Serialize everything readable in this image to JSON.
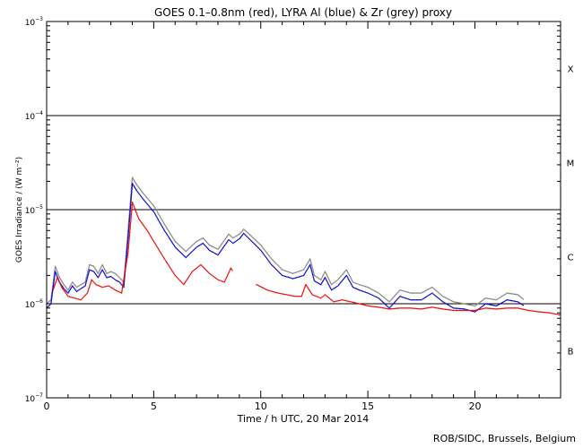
{
  "chart_data": {
    "type": "line",
    "title": "GOES 0.1–0.8nm (red), LYRA Al (blue) & Zr (grey) proxy",
    "xlabel": "Time / h UTC, 20 Mar 2014",
    "ylabel": "GOES Irradiance / (W m⁻²)",
    "xlim": [
      0,
      24
    ],
    "ylim": [
      1e-07,
      0.001
    ],
    "yscale": "log",
    "x_ticks": [
      0,
      5,
      10,
      15,
      20
    ],
    "x_tick_labels": [
      "0",
      "5",
      "10",
      "15",
      "20"
    ],
    "y_ticks": [
      1e-07,
      1e-06,
      1e-05,
      0.0001,
      0.001
    ],
    "y_tick_labels": [
      {
        "base": "10",
        "exp": "−7"
      },
      {
        "base": "10",
        "exp": "−6"
      },
      {
        "base": "10",
        "exp": "−5"
      },
      {
        "base": "10",
        "exp": "−4"
      },
      {
        "base": "10",
        "exp": "−3"
      }
    ],
    "flare_class_lines": [
      1e-06,
      1e-05,
      0.0001
    ],
    "flare_classes": [
      {
        "label": "B",
        "y": 3.16e-07
      },
      {
        "label": "C",
        "y": 3.16e-06
      },
      {
        "label": "M",
        "y": 3.16e-05
      },
      {
        "label": "X",
        "y": 0.000316
      }
    ],
    "series": [
      {
        "name": "Zr (grey) proxy",
        "color": "#808080",
        "points": [
          [
            0,
            1e-06
          ],
          [
            0.2,
            1.1e-06
          ],
          [
            0.4,
            2.5e-06
          ],
          [
            0.6,
            1.9e-06
          ],
          [
            0.8,
            1.6e-06
          ],
          [
            1.0,
            1.4e-06
          ],
          [
            1.2,
            1.7e-06
          ],
          [
            1.4,
            1.5e-06
          ],
          [
            1.6,
            1.6e-06
          ],
          [
            1.8,
            1.7e-06
          ],
          [
            2.0,
            2.6e-06
          ],
          [
            2.2,
            2.5e-06
          ],
          [
            2.4,
            2.1e-06
          ],
          [
            2.6,
            2.6e-06
          ],
          [
            2.8,
            2.1e-06
          ],
          [
            3.0,
            2.2e-06
          ],
          [
            3.2,
            2.1e-06
          ],
          [
            3.4,
            1.9e-06
          ],
          [
            3.6,
            1.7e-06
          ],
          [
            3.8,
            6e-06
          ],
          [
            4.0,
            2.2e-05
          ],
          [
            4.2,
            1.85e-05
          ],
          [
            4.5,
            1.5e-05
          ],
          [
            5.0,
            1.1e-05
          ],
          [
            5.5,
            7e-06
          ],
          [
            6.0,
            4.6e-06
          ],
          [
            6.5,
            3.6e-06
          ],
          [
            7.0,
            4.6e-06
          ],
          [
            7.3,
            5e-06
          ],
          [
            7.6,
            4.2e-06
          ],
          [
            8.0,
            3.8e-06
          ],
          [
            8.5,
            5.5e-06
          ],
          [
            8.7,
            5e-06
          ],
          [
            9.0,
            5.5e-06
          ],
          [
            9.2,
            6.2e-06
          ],
          [
            9.5,
            5.4e-06
          ],
          [
            10.0,
            4.2e-06
          ],
          [
            10.5,
            3e-06
          ],
          [
            11.0,
            2.3e-06
          ],
          [
            11.5,
            2.1e-06
          ],
          [
            12.0,
            2.3e-06
          ],
          [
            12.3,
            3e-06
          ],
          [
            12.5,
            2e-06
          ],
          [
            12.8,
            1.8e-06
          ],
          [
            13.0,
            2.2e-06
          ],
          [
            13.3,
            1.6e-06
          ],
          [
            13.6,
            1.8e-06
          ],
          [
            14.0,
            2.3e-06
          ],
          [
            14.3,
            1.7e-06
          ],
          [
            14.6,
            1.6e-06
          ],
          [
            15.0,
            1.5e-06
          ],
          [
            15.5,
            1.3e-06
          ],
          [
            16.0,
            1.05e-06
          ],
          [
            16.5,
            1.4e-06
          ],
          [
            17.0,
            1.3e-06
          ],
          [
            17.5,
            1.3e-06
          ],
          [
            18.0,
            1.5e-06
          ],
          [
            18.5,
            1.2e-06
          ],
          [
            19.0,
            1.05e-06
          ],
          [
            19.5,
            1e-06
          ],
          [
            20.0,
            9.5e-07
          ],
          [
            20.5,
            1.15e-06
          ],
          [
            21.0,
            1.1e-06
          ],
          [
            21.5,
            1.3e-06
          ],
          [
            22.0,
            1.25e-06
          ],
          [
            22.3,
            1.1e-06
          ]
        ]
      },
      {
        "name": "LYRA Al (blue)",
        "color": "#0000cc",
        "points": [
          [
            0,
            9e-07
          ],
          [
            0.2,
            1e-06
          ],
          [
            0.4,
            2.2e-06
          ],
          [
            0.6,
            1.7e-06
          ],
          [
            0.8,
            1.45e-06
          ],
          [
            1.0,
            1.3e-06
          ],
          [
            1.2,
            1.55e-06
          ],
          [
            1.4,
            1.35e-06
          ],
          [
            1.6,
            1.45e-06
          ],
          [
            1.8,
            1.55e-06
          ],
          [
            2.0,
            2.3e-06
          ],
          [
            2.2,
            2.2e-06
          ],
          [
            2.4,
            1.9e-06
          ],
          [
            2.6,
            2.3e-06
          ],
          [
            2.8,
            1.9e-06
          ],
          [
            3.0,
            1.95e-06
          ],
          [
            3.2,
            1.8e-06
          ],
          [
            3.4,
            1.7e-06
          ],
          [
            3.6,
            1.5e-06
          ],
          [
            3.8,
            5e-06
          ],
          [
            4.0,
            1.9e-05
          ],
          [
            4.2,
            1.6e-05
          ],
          [
            4.5,
            1.3e-05
          ],
          [
            5.0,
            9.5e-06
          ],
          [
            5.5,
            6e-06
          ],
          [
            6.0,
            4e-06
          ],
          [
            6.5,
            3.1e-06
          ],
          [
            7.0,
            4e-06
          ],
          [
            7.3,
            4.4e-06
          ],
          [
            7.6,
            3.7e-06
          ],
          [
            8.0,
            3.3e-06
          ],
          [
            8.5,
            4.8e-06
          ],
          [
            8.7,
            4.4e-06
          ],
          [
            9.0,
            4.9e-06
          ],
          [
            9.2,
            5.6e-06
          ],
          [
            9.5,
            4.8e-06
          ],
          [
            10.0,
            3.7e-06
          ],
          [
            10.5,
            2.6e-06
          ],
          [
            11.0,
            2e-06
          ],
          [
            11.5,
            1.85e-06
          ],
          [
            12.0,
            2e-06
          ],
          [
            12.3,
            2.6e-06
          ],
          [
            12.5,
            1.75e-06
          ],
          [
            12.8,
            1.6e-06
          ],
          [
            13.0,
            1.9e-06
          ],
          [
            13.3,
            1.4e-06
          ],
          [
            13.6,
            1.55e-06
          ],
          [
            14.0,
            2e-06
          ],
          [
            14.3,
            1.5e-06
          ],
          [
            14.6,
            1.4e-06
          ],
          [
            15.0,
            1.3e-06
          ],
          [
            15.5,
            1.15e-06
          ],
          [
            16.0,
            9e-07
          ],
          [
            16.5,
            1.2e-06
          ],
          [
            17.0,
            1.1e-06
          ],
          [
            17.5,
            1.1e-06
          ],
          [
            18.0,
            1.3e-06
          ],
          [
            18.5,
            1.05e-06
          ],
          [
            19.0,
            9e-07
          ],
          [
            19.5,
            8.8e-07
          ],
          [
            20.0,
            8.2e-07
          ],
          [
            20.5,
            1e-06
          ],
          [
            21.0,
            9.5e-07
          ],
          [
            21.5,
            1.1e-06
          ],
          [
            22.0,
            1.05e-06
          ],
          [
            22.3,
            9.5e-07
          ]
        ]
      },
      {
        "name": "GOES 0.1–0.8nm (red)",
        "color": "#ee0000",
        "points": [
          [
            0.3,
            1.4e-06
          ],
          [
            0.5,
            1.9e-06
          ],
          [
            0.7,
            1.5e-06
          ],
          [
            1.0,
            1.2e-06
          ],
          [
            1.3,
            1.15e-06
          ],
          [
            1.6,
            1.1e-06
          ],
          [
            1.9,
            1.3e-06
          ],
          [
            2.1,
            1.8e-06
          ],
          [
            2.3,
            1.6e-06
          ],
          [
            2.6,
            1.5e-06
          ],
          [
            2.9,
            1.55e-06
          ],
          [
            3.2,
            1.4e-06
          ],
          [
            3.5,
            1.3e-06
          ],
          [
            3.8,
            3.5e-06
          ],
          [
            4.0,
            1.2e-05
          ],
          [
            4.3,
            8e-06
          ],
          [
            4.7,
            6e-06
          ],
          [
            5.0,
            4.6e-06
          ],
          [
            5.5,
            3e-06
          ],
          [
            6.0,
            2e-06
          ],
          [
            6.4,
            1.6e-06
          ],
          [
            6.8,
            2.2e-06
          ],
          [
            7.2,
            2.6e-06
          ],
          [
            7.6,
            2.1e-06
          ],
          [
            8.0,
            1.8e-06
          ],
          [
            8.3,
            1.7e-06
          ],
          [
            8.6,
            2.4e-06
          ],
          [
            8.7,
            2.2e-06
          ],
          [
            null,
            null
          ],
          [
            9.8,
            1.6e-06
          ],
          [
            10.3,
            1.4e-06
          ],
          [
            10.8,
            1.3e-06
          ],
          [
            11.2,
            1.25e-06
          ],
          [
            11.6,
            1.2e-06
          ],
          [
            11.9,
            1.2e-06
          ],
          [
            12.1,
            1.6e-06
          ],
          [
            12.4,
            1.25e-06
          ],
          [
            12.8,
            1.15e-06
          ],
          [
            13.0,
            1.25e-06
          ],
          [
            13.4,
            1.05e-06
          ],
          [
            13.8,
            1.1e-06
          ],
          [
            14.2,
            1.05e-06
          ],
          [
            14.6,
            1e-06
          ],
          [
            15.0,
            9.5e-07
          ],
          [
            15.5,
            9.2e-07
          ],
          [
            16.0,
            8.8e-07
          ],
          [
            16.5,
            9e-07
          ],
          [
            17.0,
            9e-07
          ],
          [
            17.5,
            8.8e-07
          ],
          [
            18.0,
            9.2e-07
          ],
          [
            18.5,
            8.8e-07
          ],
          [
            19.0,
            8.5e-07
          ],
          [
            19.5,
            8.5e-07
          ],
          [
            20.0,
            8.5e-07
          ],
          [
            20.5,
            9e-07
          ],
          [
            21.0,
            8.8e-07
          ],
          [
            21.5,
            9e-07
          ],
          [
            22.0,
            9e-07
          ],
          [
            22.5,
            8.5e-07
          ],
          [
            23.0,
            8.2e-07
          ],
          [
            23.5,
            8e-07
          ],
          [
            24.0,
            7.6e-07
          ]
        ]
      }
    ]
  },
  "credit": "ROB/SIDC, Brussels, Belgium"
}
